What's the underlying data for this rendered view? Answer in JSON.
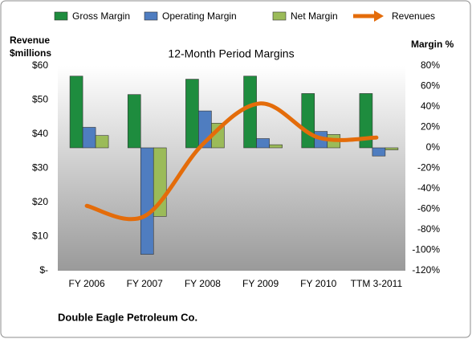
{
  "chart_data": {
    "type": "bar",
    "title": "12-Month Period Margins",
    "ylabel": "Revenue $millions",
    "y2label": "Margin %",
    "footer": "Double Eagle Petroleum Co.",
    "categories": [
      "FY 2006",
      "FY 2007",
      "FY 2008",
      "FY 2009",
      "FY 2010",
      "TTM 3-2011"
    ],
    "ylim": [
      0,
      60
    ],
    "yticks": [
      {
        "value": 0,
        "label": "$-"
      },
      {
        "value": 10,
        "label": "$10"
      },
      {
        "value": 20,
        "label": "$20"
      },
      {
        "value": 30,
        "label": "$30"
      },
      {
        "value": 40,
        "label": "$40"
      },
      {
        "value": 50,
        "label": "$50"
      },
      {
        "value": 60,
        "label": "$60"
      }
    ],
    "y2lim": [
      -120,
      80
    ],
    "y2ticks": [
      {
        "value": -120,
        "label": "-120%"
      },
      {
        "value": -100,
        "label": "-100%"
      },
      {
        "value": -80,
        "label": "-80%"
      },
      {
        "value": -60,
        "label": "-60%"
      },
      {
        "value": -40,
        "label": "-40%"
      },
      {
        "value": -20,
        "label": "-20%"
      },
      {
        "value": 0,
        "label": "0%"
      },
      {
        "value": 20,
        "label": "20%"
      },
      {
        "value": 40,
        "label": "40%"
      },
      {
        "value": 60,
        "label": "60%"
      },
      {
        "value": 80,
        "label": "80%"
      }
    ],
    "series": [
      {
        "name": "Gross Margin",
        "type": "bar",
        "axis": "y2",
        "color": "#1e8c3e",
        "values": [
          70,
          52,
          67,
          70,
          53,
          53
        ]
      },
      {
        "name": "Operating Margin",
        "type": "bar",
        "axis": "y2",
        "color": "#4f7dc0",
        "values": [
          20,
          -104,
          36,
          9,
          16,
          -8
        ]
      },
      {
        "name": "Net Margin",
        "type": "bar",
        "axis": "y2",
        "color": "#9bbb59",
        "values": [
          12,
          -67,
          24,
          3,
          13,
          -2
        ]
      },
      {
        "name": "Revenues",
        "type": "line",
        "color": "#e46c0a",
        "values": [
          19,
          16,
          37,
          49,
          39,
          39
        ]
      }
    ]
  }
}
